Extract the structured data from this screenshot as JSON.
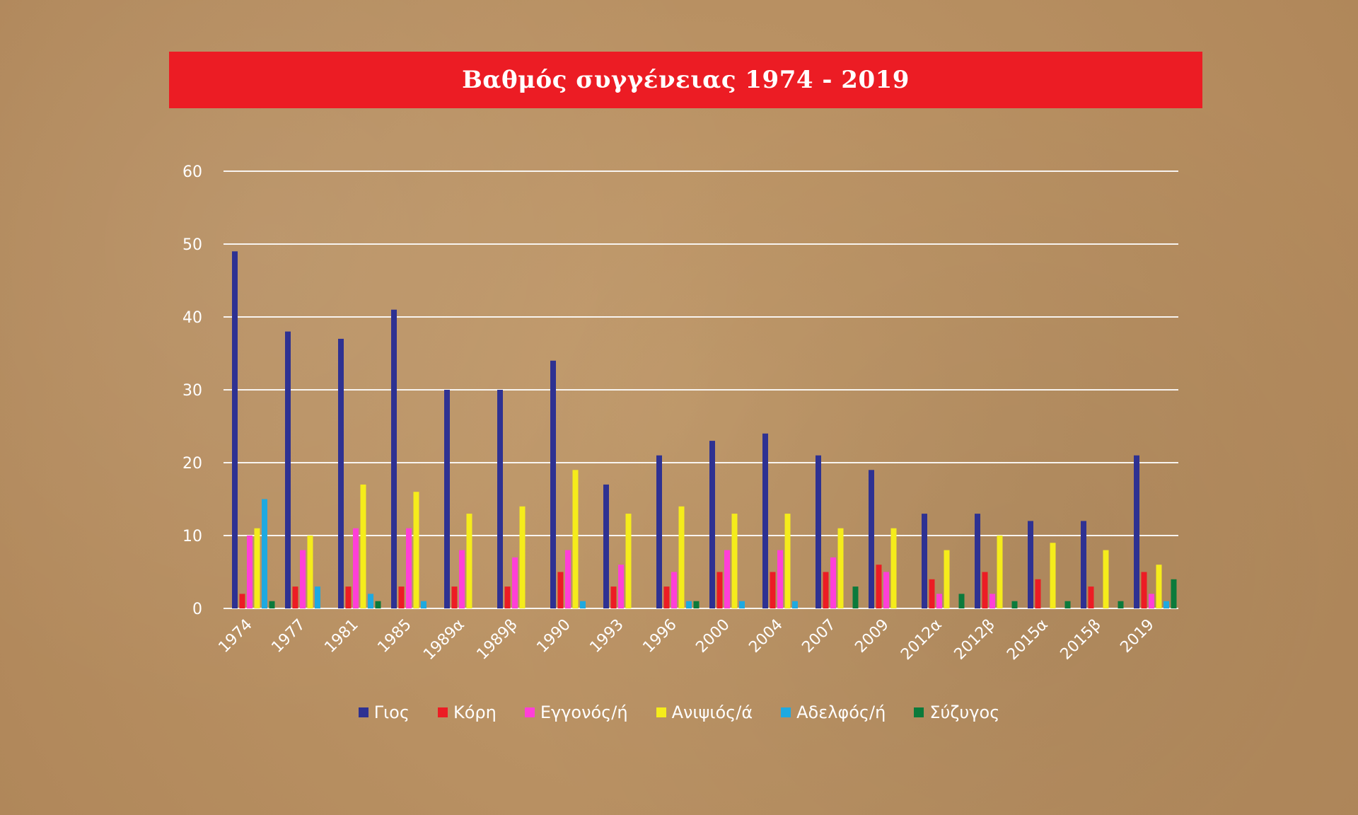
{
  "title": "Βαθμός συγγένειας 1974 - 2019",
  "chart_data": {
    "type": "bar",
    "title": "Βαθμός συγγένειας 1974 - 2019",
    "xlabel": "",
    "ylabel": "",
    "ylim": [
      0,
      60
    ],
    "yticks": [
      0,
      10,
      20,
      30,
      40,
      50,
      60
    ],
    "grid": true,
    "legend_position": "bottom",
    "categories": [
      "1974",
      "1977",
      "1981",
      "1985",
      "1989α",
      "1989β",
      "1990",
      "1993",
      "1996",
      "2000",
      "2004",
      "2007",
      "2009",
      "2012α",
      "2012β",
      "2015α",
      "2015β",
      "2019"
    ],
    "series": [
      {
        "name": "Γιος",
        "color": "#2e3192",
        "values": [
          49,
          38,
          37,
          41,
          30,
          30,
          34,
          17,
          21,
          23,
          24,
          21,
          19,
          13,
          13,
          12,
          12,
          21
        ]
      },
      {
        "name": "Κόρη",
        "color": "#ec1c24",
        "values": [
          2,
          3,
          3,
          3,
          3,
          3,
          5,
          3,
          3,
          5,
          5,
          5,
          6,
          4,
          5,
          4,
          3,
          5
        ]
      },
      {
        "name": "Εγγονός/ή",
        "color": "#ff3fd8",
        "values": [
          10,
          8,
          11,
          11,
          8,
          7,
          8,
          6,
          5,
          8,
          8,
          7,
          5,
          2,
          2,
          0,
          0,
          2
        ]
      },
      {
        "name": "Ανιψιός/ά",
        "color": "#f5ec1b",
        "values": [
          11,
          10,
          17,
          16,
          13,
          14,
          19,
          13,
          14,
          13,
          13,
          11,
          11,
          8,
          10,
          9,
          8,
          6
        ]
      },
      {
        "name": "Αδελφός/ή",
        "color": "#1fa9e0",
        "values": [
          15,
          3,
          2,
          1,
          0,
          0,
          1,
          0,
          1,
          1,
          1,
          0,
          0,
          0,
          0,
          0,
          0,
          1
        ]
      },
      {
        "name": "Σύζυγος",
        "color": "#0b7a3b",
        "values": [
          1,
          0,
          1,
          0,
          0,
          0,
          0,
          0,
          1,
          0,
          0,
          3,
          0,
          2,
          1,
          1,
          1,
          4
        ]
      }
    ]
  }
}
